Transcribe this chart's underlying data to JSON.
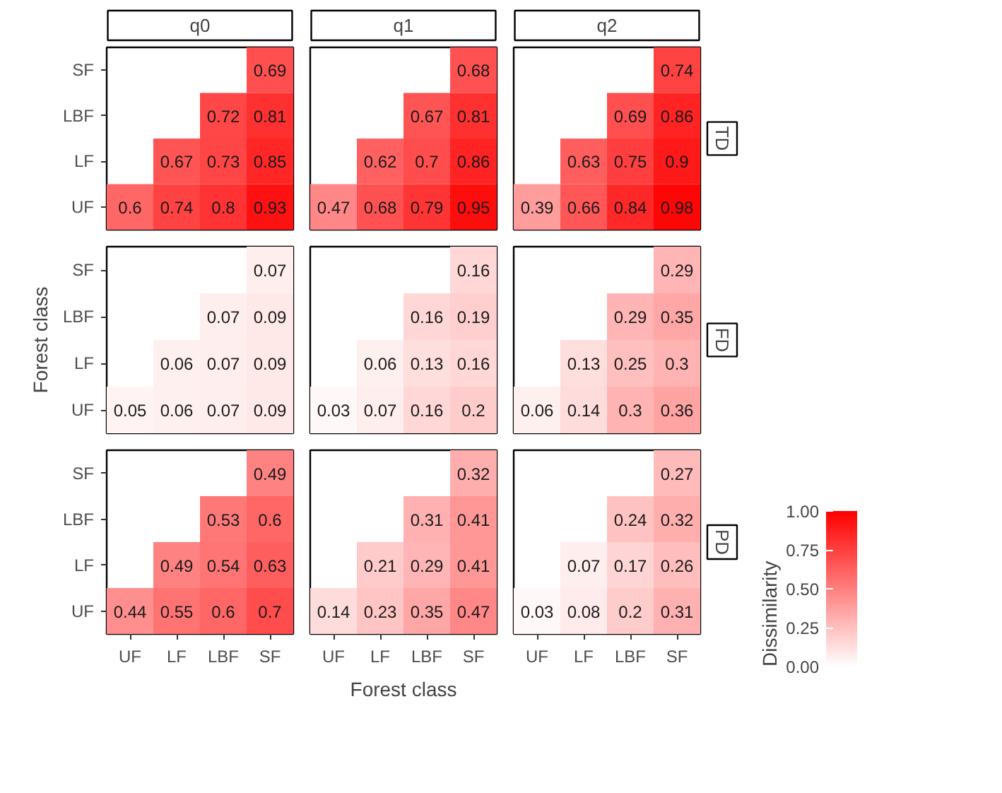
{
  "chart_data": [
    {
      "type": "heatmap",
      "title": "q0",
      "categories": [
        "UF",
        "LF",
        "LBF",
        "SF"
      ],
      "y_categories": [
        "SF",
        "LBF",
        "LF",
        "UF"
      ],
      "cells": [
        [
          null,
          null,
          null,
          0.69
        ],
        [
          null,
          null,
          0.72,
          0.81
        ],
        [
          null,
          0.67,
          0.73,
          0.85
        ],
        [
          0.6,
          0.74,
          0.8,
          0.93
        ]
      ],
      "data_labels": true,
      "tick_labels": "y"
    },
    {
      "type": "heatmap",
      "title": "q1",
      "categories": [
        "UF",
        "LF",
        "LBF",
        "SF"
      ],
      "y_categories": [
        "SF",
        "LBF",
        "LF",
        "UF"
      ],
      "cells": [
        [
          null,
          null,
          null,
          0.68
        ],
        [
          null,
          null,
          0.67,
          0.81
        ],
        [
          null,
          0.62,
          0.7,
          0.86
        ],
        [
          0.47,
          0.68,
          0.79,
          0.95
        ]
      ],
      "data_labels": true,
      "tick_labels": false
    },
    {
      "type": "heatmap",
      "title": "q2",
      "annotations": [
        "TD"
      ],
      "categories": [
        "UF",
        "LF",
        "LBF",
        "SF"
      ],
      "y_categories": [
        "SF",
        "LBF",
        "LF",
        "UF"
      ],
      "cells": [
        [
          null,
          null,
          null,
          0.74
        ],
        [
          null,
          null,
          0.69,
          0.86
        ],
        [
          null,
          0.63,
          0.75,
          0.9
        ],
        [
          0.39,
          0.66,
          0.84,
          0.98
        ]
      ],
      "data_labels": true,
      "tick_labels": false
    },
    {
      "type": "heatmap",
      "ylabel": "Forest class",
      "categories": [
        "UF",
        "LF",
        "LBF",
        "SF"
      ],
      "y_categories": [
        "SF",
        "LBF",
        "LF",
        "UF"
      ],
      "cells": [
        [
          null,
          null,
          null,
          0.07
        ],
        [
          null,
          null,
          0.07,
          0.09
        ],
        [
          null,
          0.06,
          0.07,
          0.09
        ],
        [
          0.05,
          0.06,
          0.07,
          0.09
        ]
      ],
      "data_labels": true,
      "tick_labels": "y"
    },
    {
      "type": "heatmap",
      "categories": [
        "UF",
        "LF",
        "LBF",
        "SF"
      ],
      "y_categories": [
        "SF",
        "LBF",
        "LF",
        "UF"
      ],
      "cells": [
        [
          null,
          null,
          null,
          0.16
        ],
        [
          null,
          null,
          0.16,
          0.19
        ],
        [
          null,
          0.06,
          0.13,
          0.16
        ],
        [
          0.03,
          0.07,
          0.16,
          0.2
        ]
      ],
      "data_labels": true,
      "tick_labels": false
    },
    {
      "type": "heatmap",
      "annotations": [
        "FD"
      ],
      "clabel": "Dissimilarity",
      "clim": [
        0,
        1
      ],
      "cticks": [
        {
          "value": 0,
          "label": "0.00"
        },
        {
          "value": 0.25,
          "label": "0.25"
        },
        {
          "value": 0.5,
          "label": "0.50"
        },
        {
          "value": 0.75,
          "label": "0.75"
        },
        {
          "value": 1,
          "label": "1.00"
        }
      ],
      "categories": [
        "UF",
        "LF",
        "LBF",
        "SF"
      ],
      "y_categories": [
        "SF",
        "LBF",
        "LF",
        "UF"
      ],
      "cells": [
        [
          null,
          null,
          null,
          0.29
        ],
        [
          null,
          null,
          0.29,
          0.35
        ],
        [
          null,
          0.13,
          0.25,
          0.3
        ],
        [
          0.06,
          0.14,
          0.3,
          0.36
        ]
      ],
      "data_labels": true,
      "tick_labels": false
    },
    {
      "type": "heatmap",
      "categories": [
        "UF",
        "LF",
        "LBF",
        "SF"
      ],
      "y_categories": [
        "SF",
        "LBF",
        "LF",
        "UF"
      ],
      "cells": [
        [
          null,
          null,
          null,
          0.49
        ],
        [
          null,
          null,
          0.53,
          0.6
        ],
        [
          null,
          0.49,
          0.54,
          0.63
        ],
        [
          0.44,
          0.55,
          0.6,
          0.7
        ]
      ],
      "data_labels": true
    },
    {
      "type": "heatmap",
      "xlabel": "Forest class",
      "categories": [
        "UF",
        "LF",
        "LBF",
        "SF"
      ],
      "y_categories": [
        "SF",
        "LBF",
        "LF",
        "UF"
      ],
      "cells": [
        [
          null,
          null,
          null,
          0.32
        ],
        [
          null,
          null,
          0.31,
          0.41
        ],
        [
          null,
          0.21,
          0.29,
          0.41
        ],
        [
          0.14,
          0.23,
          0.35,
          0.47
        ]
      ],
      "data_labels": true,
      "tick_labels": "x"
    },
    {
      "type": "heatmap",
      "annotations": [
        "PD"
      ],
      "categories": [
        "UF",
        "LF",
        "LBF",
        "SF"
      ],
      "y_categories": [
        "SF",
        "LBF",
        "LF",
        "UF"
      ],
      "cells": [
        [
          null,
          null,
          null,
          0.27
        ],
        [
          null,
          null,
          0.24,
          0.32
        ],
        [
          null,
          0.07,
          0.17,
          0.26
        ],
        [
          0.03,
          0.08,
          0.2,
          0.31
        ]
      ],
      "data_labels": true,
      "tick_labels": "x"
    }
  ]
}
